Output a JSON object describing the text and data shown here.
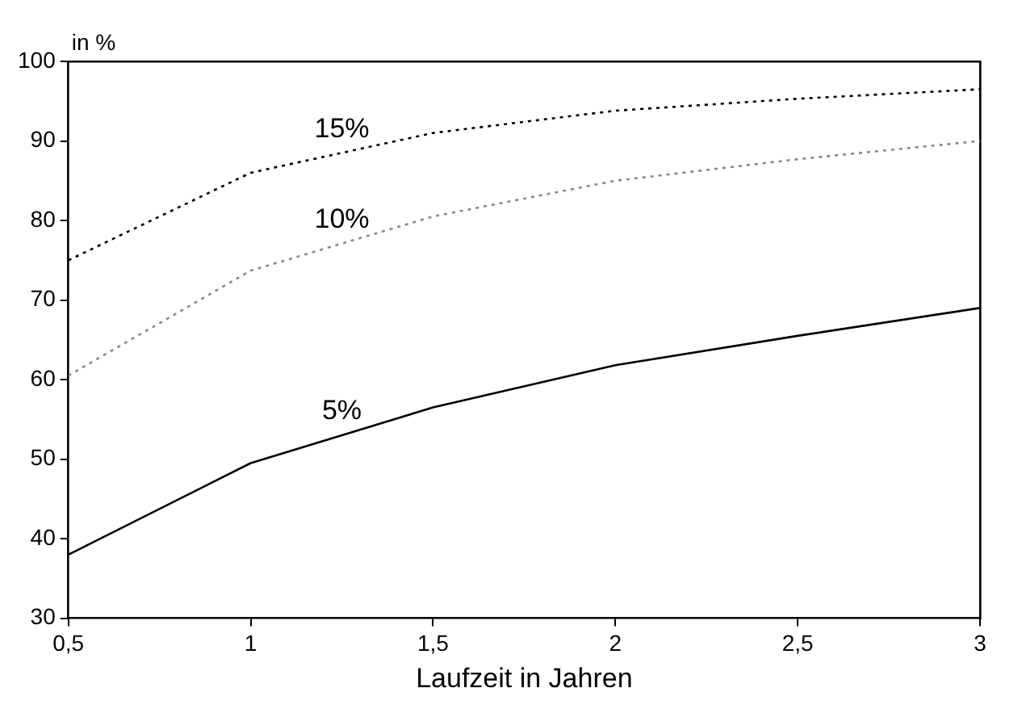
{
  "chart_data": {
    "type": "line",
    "xlabel": "Laufzeit in Jahren",
    "ylabel": "in %",
    "x": [
      0.5,
      1,
      1.5,
      2,
      2.5,
      3
    ],
    "series": [
      {
        "name": "15%",
        "color": "#000000",
        "line_style": "dotted",
        "values": [
          75,
          86,
          91,
          93.8,
          95.3,
          96.5
        ]
      },
      {
        "name": "10%",
        "color": "#888888",
        "line_style": "dotted",
        "values": [
          60.5,
          73.7,
          80.5,
          85,
          87.7,
          90
        ]
      },
      {
        "name": "5%",
        "color": "#000000",
        "line_style": "solid",
        "values": [
          38,
          49.5,
          56.5,
          61.8,
          65.5,
          69
        ]
      }
    ],
    "xlim": [
      0.5,
      3
    ],
    "xticks": [
      {
        "value": 0.5,
        "label": "0,5"
      },
      1,
      {
        "value": 1.5,
        "label": "1,5"
      },
      2,
      {
        "value": 2.5,
        "label": "2,5"
      },
      3
    ],
    "ylim": [
      30,
      100
    ],
    "yticks": [
      30,
      40,
      50,
      60,
      70,
      80,
      90,
      100
    ],
    "grid": false,
    "legend": false,
    "marker": "none"
  }
}
